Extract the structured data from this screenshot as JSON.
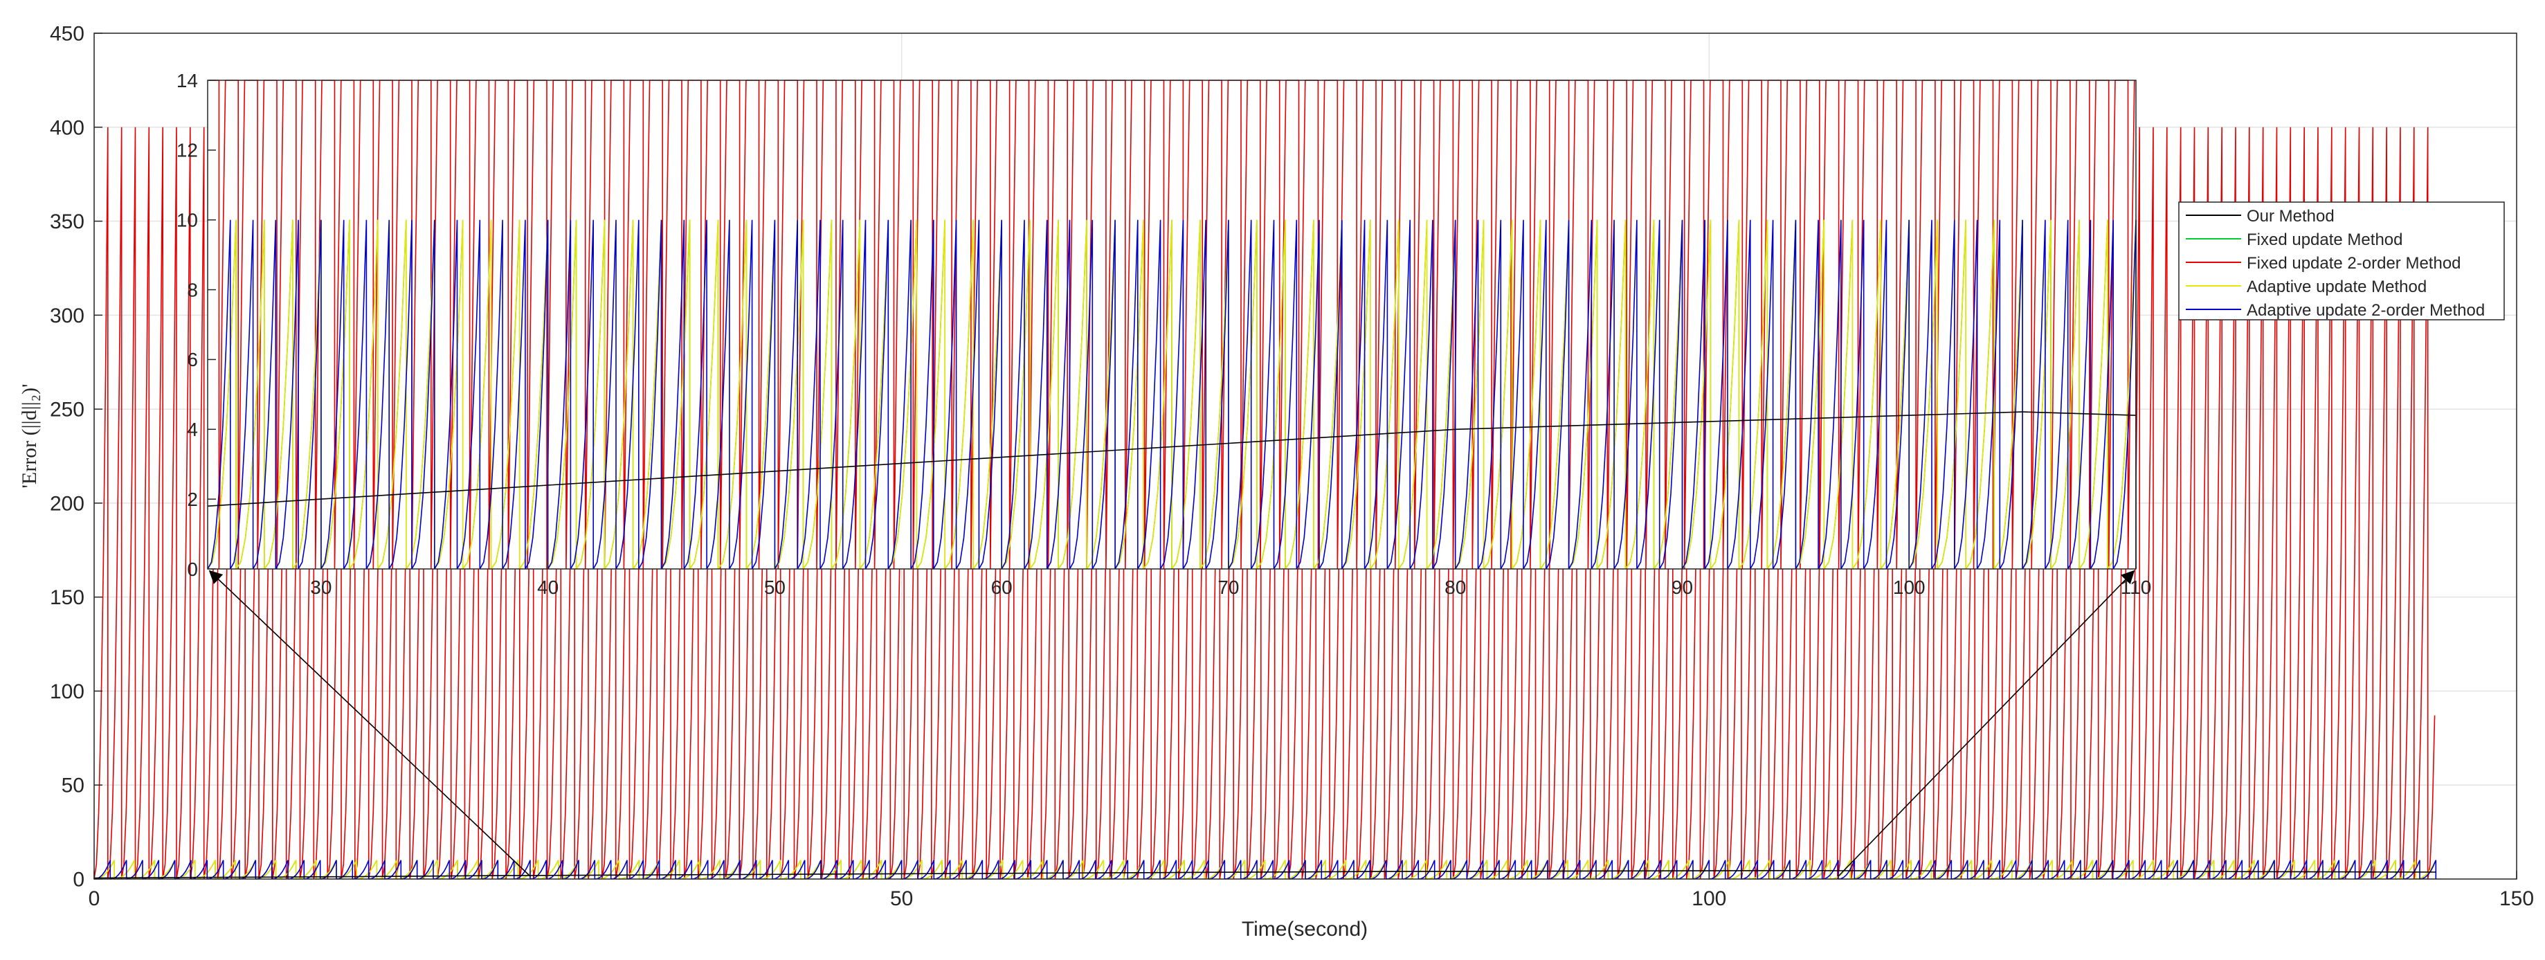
{
  "chart_data": [
    {
      "type": "line",
      "title": "",
      "xlabel": "Time(second)",
      "ylabel": "'Error (||d||₂)'",
      "xlim": [
        0,
        150
      ],
      "ylim": [
        0,
        450
      ],
      "xticks": [
        0,
        50,
        100,
        150
      ],
      "yticks": [
        0,
        50,
        100,
        150,
        200,
        250,
        300,
        350,
        400,
        450
      ],
      "grid": true,
      "legend_position": "right",
      "series": [
        {
          "name": "Our Method",
          "color": "#000000",
          "pattern": "smooth",
          "x": [
            0,
            5,
            10,
            15,
            20,
            25,
            30,
            35,
            40,
            45,
            50,
            55,
            60,
            65,
            70,
            75,
            80,
            85,
            90,
            95,
            100,
            105,
            110,
            115,
            120,
            125,
            130,
            135,
            140,
            145
          ],
          "y": [
            0.5,
            0.8,
            1.0,
            1.2,
            1.5,
            1.8,
            2.0,
            2.2,
            2.4,
            2.6,
            2.8,
            3.0,
            3.2,
            3.4,
            3.6,
            3.8,
            4.0,
            4.1,
            4.2,
            4.3,
            4.4,
            4.5,
            4.4,
            4.3,
            4.2,
            4.1,
            4.0,
            3.9,
            3.8,
            3.7
          ]
        },
        {
          "name": "Fixed update Method",
          "color": "#00cc33",
          "pattern": "sawtooth",
          "period": 1.25,
          "peak": 10,
          "x_start": 0,
          "x_end": 145
        },
        {
          "name": "Fixed update 2-order Method",
          "color": "#e60000",
          "pattern": "sawtooth",
          "period": 0.85,
          "peak": 400,
          "x_start": 0,
          "x_end": 145
        },
        {
          "name": "Adaptive update Method",
          "color": "#e6e600",
          "pattern": "sawtooth",
          "period": 1.25,
          "peak": 10,
          "x_start": 0,
          "x_end": 145
        },
        {
          "name": "Adaptive update 2-order Method",
          "color": "#0000cc",
          "pattern": "sawtooth",
          "period": 1.0,
          "peak": 10,
          "x_start": 0,
          "x_end": 145
        }
      ]
    },
    {
      "type": "line",
      "role": "inset-zoom",
      "title": "",
      "xlabel": "",
      "ylabel": "",
      "xlim": [
        25,
        110
      ],
      "ylim": [
        0,
        14
      ],
      "xticks": [
        30,
        40,
        50,
        60,
        70,
        80,
        90,
        100,
        110
      ],
      "yticks": [
        0,
        2,
        4,
        6,
        8,
        10,
        12,
        14
      ],
      "grid": false,
      "zoom_source_x": [
        25,
        110
      ]
    }
  ],
  "legend": {
    "items": [
      {
        "label": "Our Method",
        "color": "#000000"
      },
      {
        "label": "Fixed update Method",
        "color": "#00cc33"
      },
      {
        "label": "Fixed update 2-order Method",
        "color": "#e60000"
      },
      {
        "label": "Adaptive update Method",
        "color": "#e6e600"
      },
      {
        "label": "Adaptive update 2-order Method",
        "color": "#0000cc"
      }
    ]
  }
}
